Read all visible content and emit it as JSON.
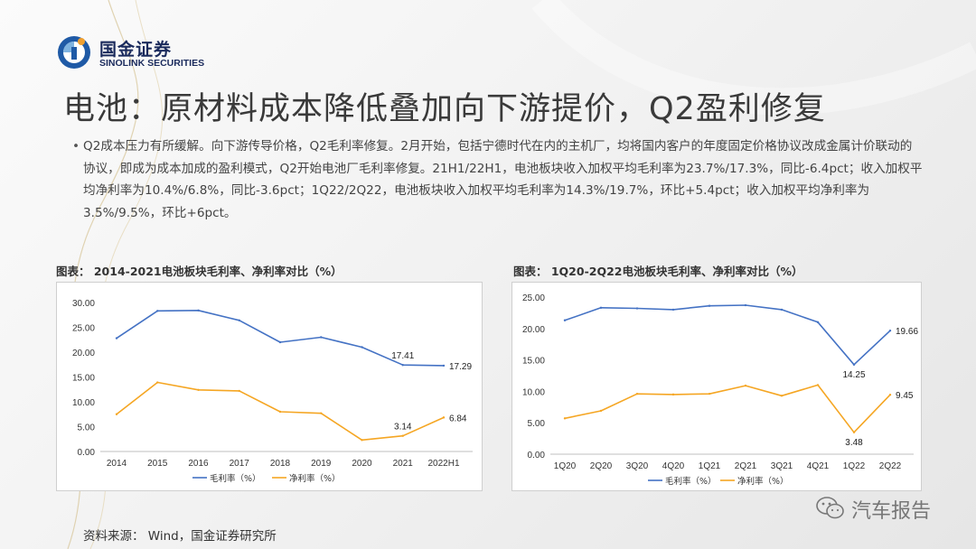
{
  "logo": {
    "cn": "国金证券",
    "en": "SINOLINK SECURITIES",
    "icon": "sinolink-logo-icon"
  },
  "title": "电池：原材料成本降低叠加向下游提价，Q2盈利修复",
  "body": {
    "bullet": "•",
    "text": "Q2成本压力有所缓解。向下游传导价格，Q2毛利率修复。2月开始，包括宁德时代在内的主机厂，均将国内客户的年度固定价格协议改成金属计价联动的协议，即成为成本加成的盈利模式，Q2开始电池厂毛利率修复。21H1/22H1，电池板块收入加权平均毛利率为23.7%/17.3%，同比-6.4pct；收入加权平均净利率为10.4%/6.8%，同比-3.6pct；1Q22/2Q22，电池板块收入加权平均毛利率为14.3%/19.7%，环比+5.4pct；收入加权平均净利率为3.5%/9.5%，环比+6pct。"
  },
  "charts": {
    "left_caption": "图表：  2014-2021电池板块毛利率、净利率对比（%）",
    "right_caption": "图表：  1Q20-2Q22电池板块毛利率、净利率对比（%）"
  },
  "chart_data": [
    {
      "type": "line",
      "title": "2014-2021电池板块毛利率、净利率对比（%）",
      "categories": [
        "2014",
        "2015",
        "2016",
        "2017",
        "2018",
        "2019",
        "2020",
        "2021",
        "2022H1"
      ],
      "ylim": [
        0,
        30
      ],
      "yticks": [
        "0.00",
        "5.00",
        "10.00",
        "15.00",
        "20.00",
        "25.00",
        "30.00"
      ],
      "grid": false,
      "legend": "bottom",
      "series": [
        {
          "name": "毛利率（%）",
          "color": "#4472c4",
          "values": [
            22.8,
            28.3,
            28.4,
            26.4,
            22.0,
            23.0,
            21.0,
            17.41,
            17.29
          ]
        },
        {
          "name": "净利率（%）",
          "color": "#f5a623",
          "values": [
            7.5,
            13.9,
            12.4,
            12.2,
            8.0,
            7.7,
            2.3,
            3.14,
            6.84
          ]
        }
      ],
      "data_labels": [
        {
          "series": 0,
          "index": 7,
          "text": "17.41",
          "pos": "above"
        },
        {
          "series": 0,
          "index": 8,
          "text": "17.29",
          "pos": "right"
        },
        {
          "series": 1,
          "index": 7,
          "text": "3.14",
          "pos": "above"
        },
        {
          "series": 1,
          "index": 8,
          "text": "6.84",
          "pos": "right"
        }
      ]
    },
    {
      "type": "line",
      "title": "1Q20-2Q22电池板块毛利率、净利率对比（%）",
      "categories": [
        "1Q20",
        "2Q20",
        "3Q20",
        "4Q20",
        "1Q21",
        "2Q21",
        "3Q21",
        "4Q21",
        "1Q22",
        "2Q22"
      ],
      "ylim": [
        0,
        25
      ],
      "yticks": [
        "0.00",
        "5.00",
        "10.00",
        "15.00",
        "20.00",
        "25.00"
      ],
      "grid": false,
      "legend": "bottom",
      "series": [
        {
          "name": "毛利率（%）",
          "color": "#4472c4",
          "values": [
            21.3,
            23.3,
            23.2,
            23.0,
            23.6,
            23.7,
            23.0,
            21.0,
            14.25,
            19.66
          ]
        },
        {
          "name": "净利率（%）",
          "color": "#f5a623",
          "values": [
            5.7,
            6.9,
            9.6,
            9.5,
            9.6,
            10.9,
            9.3,
            11.0,
            3.48,
            9.45
          ]
        }
      ],
      "data_labels": [
        {
          "series": 0,
          "index": 8,
          "text": "14.25",
          "pos": "below"
        },
        {
          "series": 0,
          "index": 9,
          "text": "19.66",
          "pos": "right"
        },
        {
          "series": 1,
          "index": 8,
          "text": "3.48",
          "pos": "below"
        },
        {
          "series": 1,
          "index": 9,
          "text": "9.45",
          "pos": "right"
        }
      ]
    }
  ],
  "source": "资料来源：  Wind，国金证券研究所",
  "watermark": {
    "text": "汽车报告",
    "icon": "wechat-icon"
  }
}
